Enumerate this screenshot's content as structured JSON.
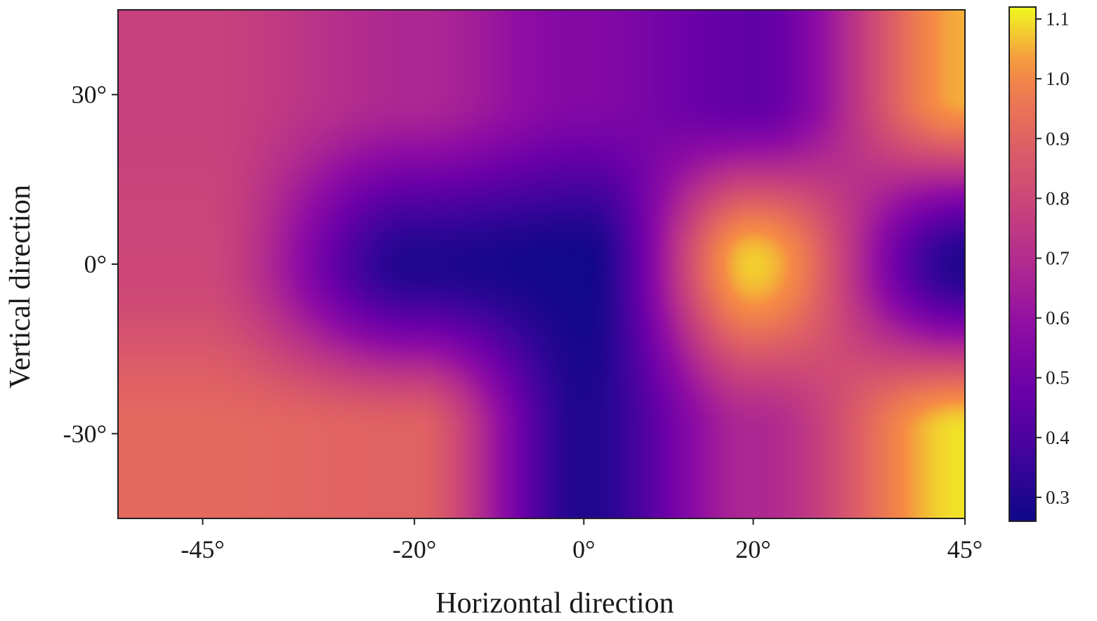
{
  "chart_data": {
    "type": "heatmap",
    "title": "",
    "xlabel": "Horizontal direction",
    "ylabel": "Vertical direction",
    "x_ticks": [
      {
        "value": -45,
        "label": "-45°"
      },
      {
        "value": -20,
        "label": "-20°"
      },
      {
        "value": 0,
        "label": "0°"
      },
      {
        "value": 20,
        "label": "20°"
      },
      {
        "value": 45,
        "label": "45°"
      }
    ],
    "y_ticks": [
      {
        "value": 30,
        "label": "30°"
      },
      {
        "value": 0,
        "label": "0°"
      },
      {
        "value": -30,
        "label": "-30°"
      }
    ],
    "xlim": [
      -55,
      45
    ],
    "ylim": [
      -45,
      45
    ],
    "x": [
      -45,
      -20,
      0,
      20,
      45
    ],
    "y": [
      30,
      0,
      -30
    ],
    "z": [
      [
        0.78,
        0.68,
        0.55,
        0.45,
        1.05
      ],
      [
        0.8,
        0.3,
        0.27,
        1.08,
        0.3
      ],
      [
        0.92,
        0.9,
        0.3,
        0.68,
        1.1
      ]
    ],
    "colorbar": {
      "colormap": "plasma",
      "range": [
        0.26,
        1.12
      ],
      "ticks": [
        {
          "value": 1.1,
          "label": "1.1"
        },
        {
          "value": 1.0,
          "label": "1.0"
        },
        {
          "value": 0.9,
          "label": "0.9"
        },
        {
          "value": 0.8,
          "label": "0.8"
        },
        {
          "value": 0.7,
          "label": "0.7"
        },
        {
          "value": 0.6,
          "label": "0.6"
        },
        {
          "value": 0.5,
          "label": "0.5"
        },
        {
          "value": 0.4,
          "label": "0.4"
        },
        {
          "value": 0.3,
          "label": "0.3"
        }
      ]
    },
    "grid": false
  }
}
